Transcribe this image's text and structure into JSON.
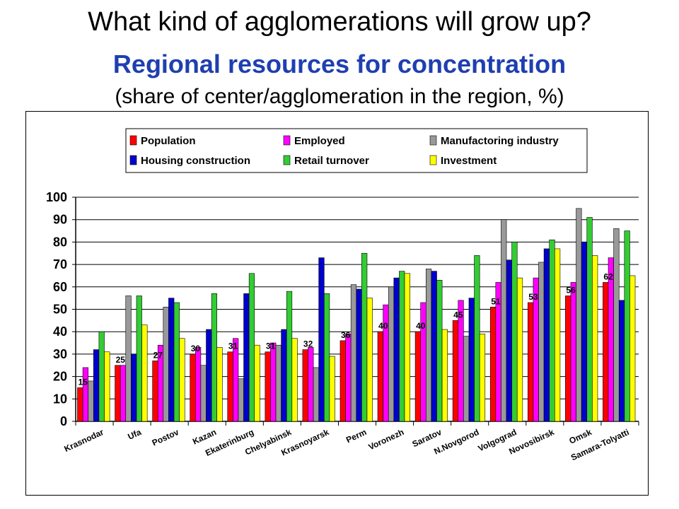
{
  "slide": {
    "title": "What kind of agglomerations will grow up?",
    "subtitle": "Regional resources for concentration",
    "note": "(share of center/agglomeration in the region, %)"
  },
  "chart_data": {
    "type": "bar",
    "title": "Regional resources for concentration",
    "xlabel": "",
    "ylabel": "",
    "ylim": [
      0,
      100
    ],
    "yticks": [
      0,
      10,
      20,
      30,
      40,
      50,
      60,
      70,
      80,
      90,
      100
    ],
    "grid": true,
    "legend_position": "top",
    "categories": [
      "Krasnodar",
      "Ufa",
      "Postov",
      "Kazan",
      "Ekaterinburg",
      "Chelyabinsk",
      "Krasnoyarsk",
      "Perm",
      "Voronezh",
      "Saratov",
      "N.Novgorod",
      "Volgograd",
      "Novosibirsk",
      "Omsk",
      "Samara-Tolyatti"
    ],
    "series": [
      {
        "name": "Population",
        "color": "#ff0000",
        "values": [
          15,
          25,
          27,
          30,
          31,
          31,
          32,
          36,
          40,
          40,
          45,
          51,
          53,
          56,
          62
        ]
      },
      {
        "name": "Employed",
        "color": "#ff00ff",
        "values": [
          24,
          25,
          34,
          33,
          37,
          35,
          33,
          39,
          52,
          53,
          54,
          62,
          64,
          62,
          73
        ]
      },
      {
        "name": "Manufactoring industry",
        "color": "#999999",
        "values": [
          18,
          56,
          51,
          25,
          19,
          34,
          24,
          61,
          60,
          68,
          38,
          90,
          71,
          95,
          86
        ]
      },
      {
        "name": "Housing construction",
        "color": "#0000cc",
        "values": [
          32,
          30,
          55,
          41,
          57,
          41,
          73,
          59,
          64,
          67,
          55,
          72,
          77,
          80,
          54
        ]
      },
      {
        "name": "Retail turnover",
        "color": "#33cc33",
        "values": [
          40,
          56,
          53,
          57,
          66,
          58,
          57,
          75,
          67,
          63,
          74,
          80,
          81,
          91,
          85
        ]
      },
      {
        "name": "Investment",
        "color": "#ffff00",
        "values": [
          31,
          43,
          37,
          33,
          34,
          37,
          29,
          55,
          66,
          41,
          39,
          64,
          77,
          74,
          65
        ]
      }
    ],
    "data_labels": [
      15,
      25,
      27,
      30,
      31,
      31,
      32,
      36,
      40,
      40,
      45,
      51,
      53,
      56,
      62
    ]
  }
}
